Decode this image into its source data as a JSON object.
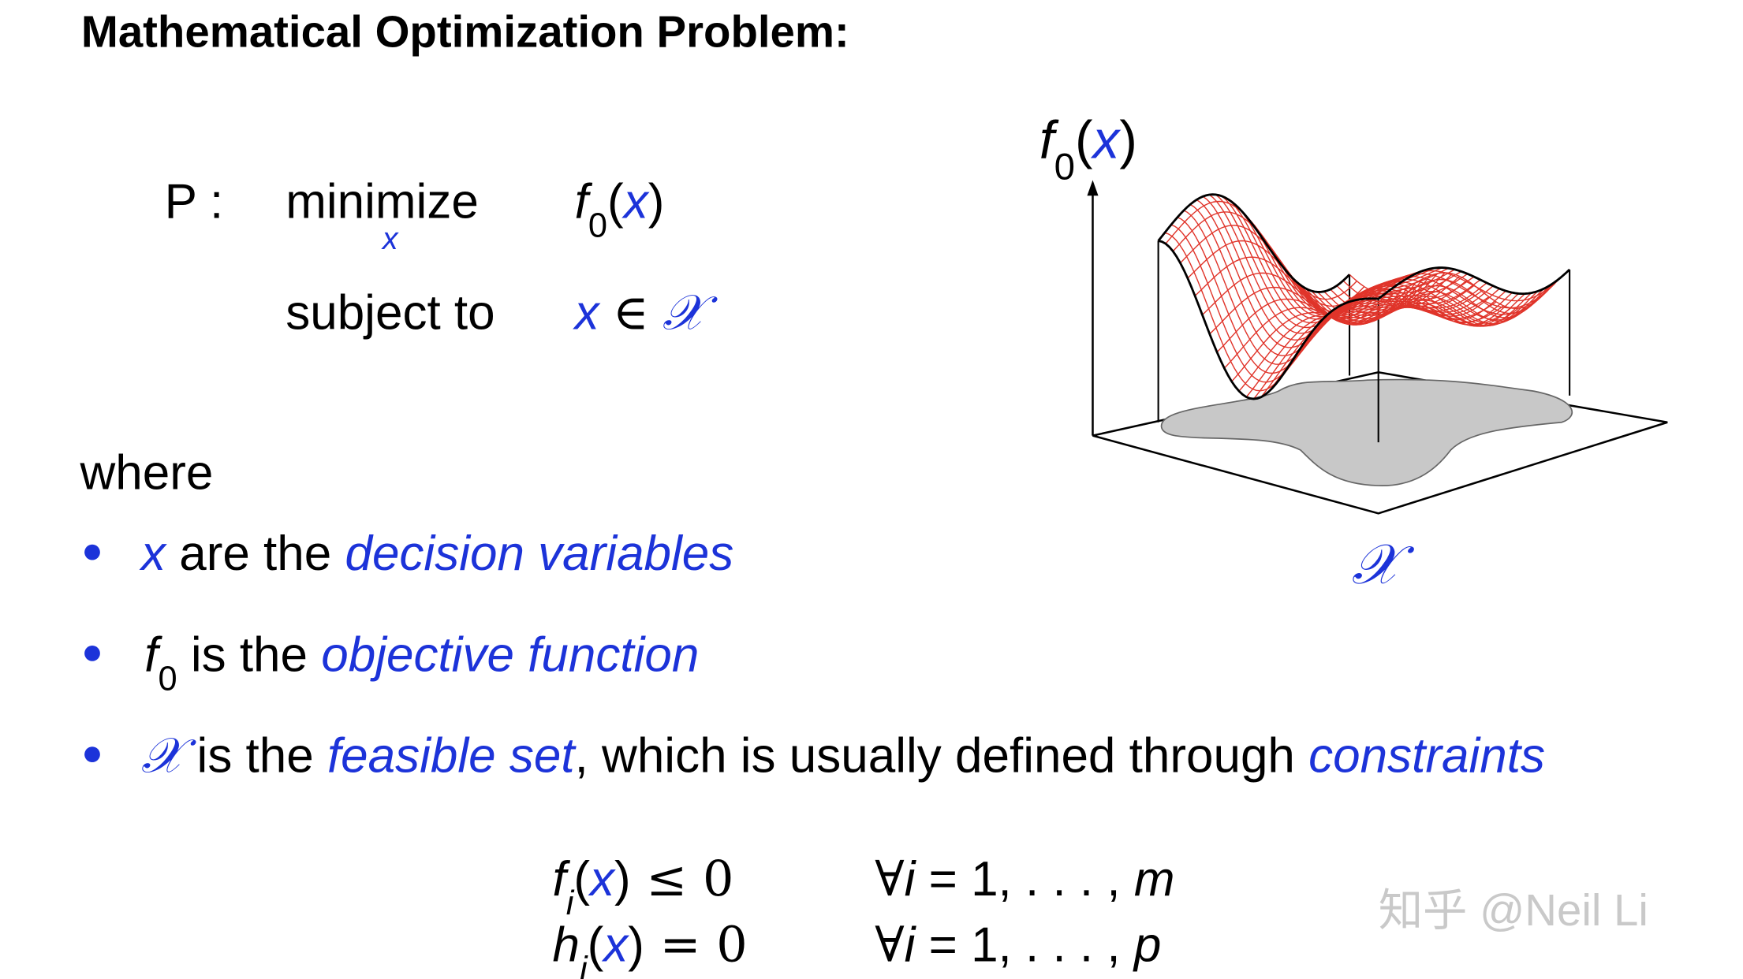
{
  "title": "Mathematical Optimization Problem:",
  "problem": {
    "name": "P :",
    "minimize": "minimize",
    "under": "x",
    "objective": [
      "f",
      "0",
      "(",
      "x",
      ")"
    ],
    "subject_to": "subject to",
    "constraint": [
      "x",
      "∈",
      "𝒳"
    ]
  },
  "where": "where",
  "bullets": [
    [
      "x",
      " are the ",
      "decision variables"
    ],
    [
      "f",
      "0",
      " is the ",
      "objective function"
    ],
    [
      "𝒳",
      " is the ",
      "feasible set",
      ", which is usually defined through ",
      "constraints"
    ]
  ],
  "constraints": [
    [
      "f",
      "i",
      "(",
      "x",
      ")",
      " ≤ 0",
      "∀",
      "i",
      " = 1, . . . , ",
      "m"
    ],
    [
      "h",
      "i",
      "(",
      "x",
      ")",
      " = 0",
      "∀",
      "i",
      " = 1, . . . , ",
      "p"
    ]
  ],
  "figure": {
    "axis_label": [
      "f",
      "0",
      "(",
      "x",
      ")"
    ],
    "set_label": "𝒳"
  },
  "watermark": "知乎 @Neil Li"
}
